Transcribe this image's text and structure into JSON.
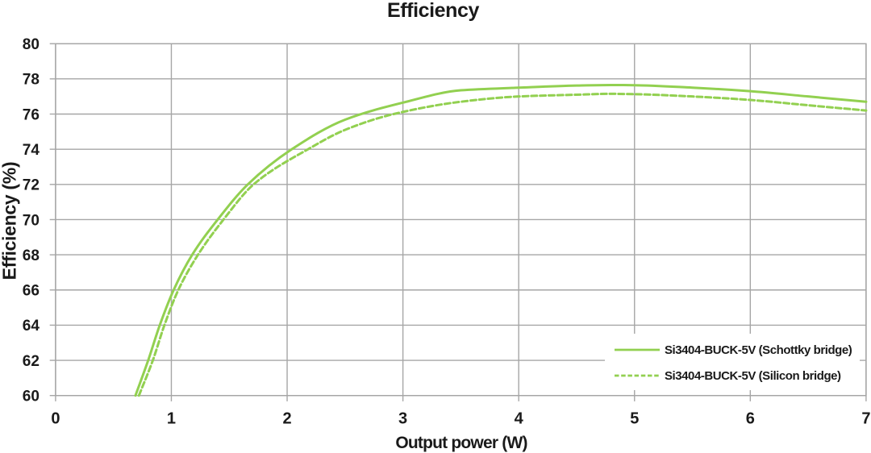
{
  "chart_data": {
    "type": "line",
    "title": "Efficiency",
    "xlabel": "Output power (W)",
    "ylabel": "Efficiency (%)",
    "xlim": [
      0,
      7
    ],
    "ylim": [
      60,
      80
    ],
    "x_ticks": [
      0,
      1,
      2,
      3,
      4,
      5,
      6,
      7
    ],
    "y_ticks": [
      60,
      62,
      64,
      66,
      68,
      70,
      72,
      74,
      76,
      78,
      80
    ],
    "grid": true,
    "legend_position": "inside-lower-right",
    "colors": {
      "line_green": "#92d050",
      "grid_gray": "#a6a6a6",
      "text": "#1a1a1a",
      "background": "#ffffff"
    },
    "series": [
      {
        "name": "Si3404-BUCK-5V (Schottky bridge)",
        "style": "solid",
        "points": [
          [
            0.69,
            60
          ],
          [
            0.8,
            62
          ],
          [
            0.9,
            64
          ],
          [
            1.02,
            66
          ],
          [
            1.18,
            68
          ],
          [
            1.4,
            70
          ],
          [
            1.66,
            72
          ],
          [
            2.04,
            74
          ],
          [
            2.5,
            75.68
          ],
          [
            3.0,
            76.65
          ],
          [
            3.5,
            77.35
          ],
          [
            4.0,
            77.5
          ],
          [
            4.5,
            77.62
          ],
          [
            4.8,
            77.65
          ],
          [
            5.0,
            77.64
          ],
          [
            5.5,
            77.5
          ],
          [
            6.0,
            77.3
          ],
          [
            6.5,
            77.0
          ],
          [
            7.0,
            76.7
          ]
        ]
      },
      {
        "name": "Si3404-BUCK-5V (Silicon bridge)",
        "style": "dashed",
        "points": [
          [
            0.72,
            60
          ],
          [
            0.84,
            62
          ],
          [
            0.94,
            64
          ],
          [
            1.06,
            66
          ],
          [
            1.23,
            68
          ],
          [
            1.45,
            70
          ],
          [
            1.71,
            72
          ],
          [
            2.18,
            74
          ],
          [
            2.5,
            75.1
          ],
          [
            2.92,
            76
          ],
          [
            3.5,
            76.7
          ],
          [
            4.0,
            77.0
          ],
          [
            4.5,
            77.1
          ],
          [
            4.8,
            77.15
          ],
          [
            5.0,
            77.13
          ],
          [
            5.5,
            77.0
          ],
          [
            6.0,
            76.8
          ],
          [
            6.5,
            76.5
          ],
          [
            7.0,
            76.2
          ]
        ]
      }
    ]
  }
}
